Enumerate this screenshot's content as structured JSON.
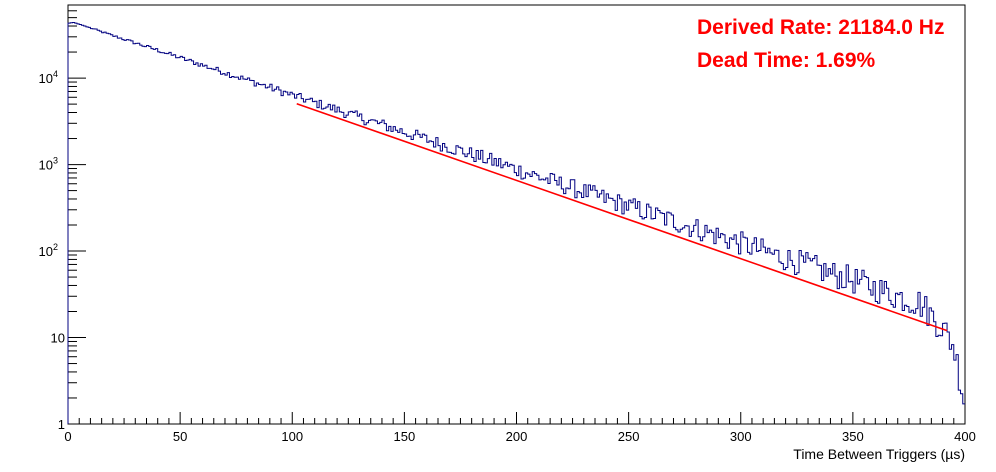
{
  "chart_data": {
    "type": "line",
    "title": "",
    "xlabel": "Time Between Triggers (µs)",
    "ylabel": "",
    "xlim": [
      0,
      400
    ],
    "ylim": [
      1,
      70000
    ],
    "yscale": "log",
    "grid": false,
    "x_ticks": [
      "0",
      "50",
      "100",
      "150",
      "200",
      "250",
      "300",
      "350",
      "400"
    ],
    "y_ticks": [
      {
        "base": "1",
        "exp": ""
      },
      {
        "base": "10",
        "exp": ""
      },
      {
        "base": "10",
        "exp": "2"
      },
      {
        "base": "10",
        "exp": "3"
      },
      {
        "base": "10",
        "exp": "4"
      }
    ],
    "annotations": [
      "Derived Rate: 21184.0 Hz",
      "Dead Time: 1.69%"
    ],
    "series": [
      {
        "style": "histogram",
        "color": "#000080",
        "x": [
          0,
          2.5,
          5,
          10,
          20,
          30,
          40,
          50,
          60,
          70,
          80,
          90,
          100,
          110,
          120,
          130,
          140,
          150,
          160,
          170,
          180,
          190,
          200,
          210,
          220,
          230,
          240,
          250,
          260,
          270,
          280,
          290,
          300,
          310,
          320,
          330,
          340,
          350,
          360,
          370,
          380,
          390,
          395,
          399.5
        ],
        "y": [
          43000,
          44000,
          42000,
          38000,
          31000,
          25500,
          21000,
          17200,
          14100,
          11600,
          9500,
          7800,
          6350,
          5200,
          4300,
          3500,
          2900,
          2370,
          1950,
          1600,
          1310,
          1080,
          880,
          720,
          590,
          485,
          400,
          330,
          270,
          222,
          182,
          150,
          123,
          100,
          82,
          68,
          55,
          46,
          37,
          30,
          25,
          13,
          8,
          2
        ]
      },
      {
        "style": "fit",
        "color": "#ff0000",
        "x_range": [
          102,
          392
        ],
        "y_range": [
          5050,
          12
        ]
      }
    ]
  }
}
